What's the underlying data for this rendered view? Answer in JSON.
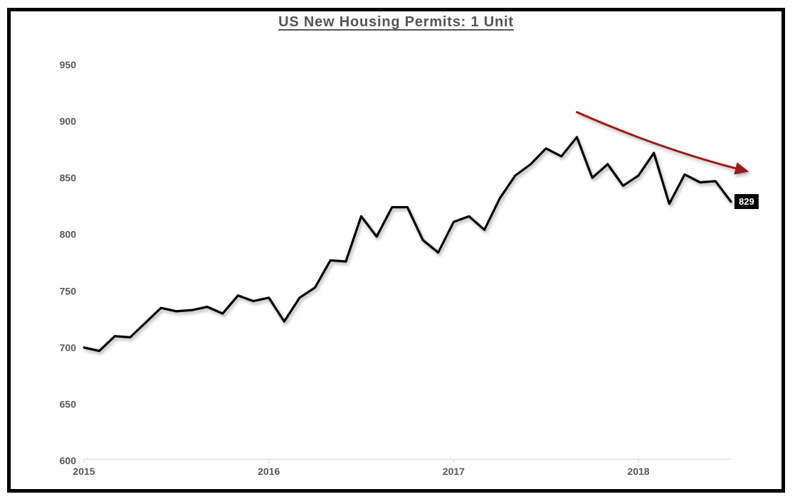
{
  "chart_data": {
    "type": "line",
    "title": "US New Housing Permits: 1 Unit",
    "x_start": "2015-01",
    "frequency": "monthly",
    "x_tick_labels": [
      "2015",
      "2016",
      "2017",
      "2018"
    ],
    "y_ticks": [
      950,
      900,
      850,
      800,
      750,
      700,
      650,
      600
    ],
    "ylim": [
      600,
      950
    ],
    "grid": false,
    "legend": "none",
    "series": [
      {
        "name": "US New Housing Permits: 1 Unit",
        "values": [
          700,
          697,
          710,
          709,
          722,
          735,
          732,
          733,
          736,
          730,
          746,
          741,
          744,
          723,
          744,
          753,
          777,
          776,
          816,
          798,
          824,
          824,
          795,
          784,
          811,
          816,
          804,
          832,
          852,
          862,
          876,
          869,
          886,
          850,
          862,
          843,
          852,
          872,
          827,
          853,
          846,
          847,
          829
        ]
      }
    ],
    "last_point_label": "829",
    "annotations": [
      {
        "type": "arrow",
        "meaning": "downtrend since late-2017 peak",
        "from": {
          "x_index": 32,
          "value": 908
        },
        "to": {
          "x_index": 43,
          "value": 856
        }
      }
    ],
    "colors": {
      "series_line": "#000000",
      "trend_arrow": "#9b1b1b",
      "axis_text": "#595959",
      "axis_line": "#d9d9d9",
      "title_text": "#555555",
      "data_label_bg": "#000000",
      "data_label_text": "#ffffff",
      "frame_border": "#000000",
      "background": "#ffffff"
    }
  }
}
